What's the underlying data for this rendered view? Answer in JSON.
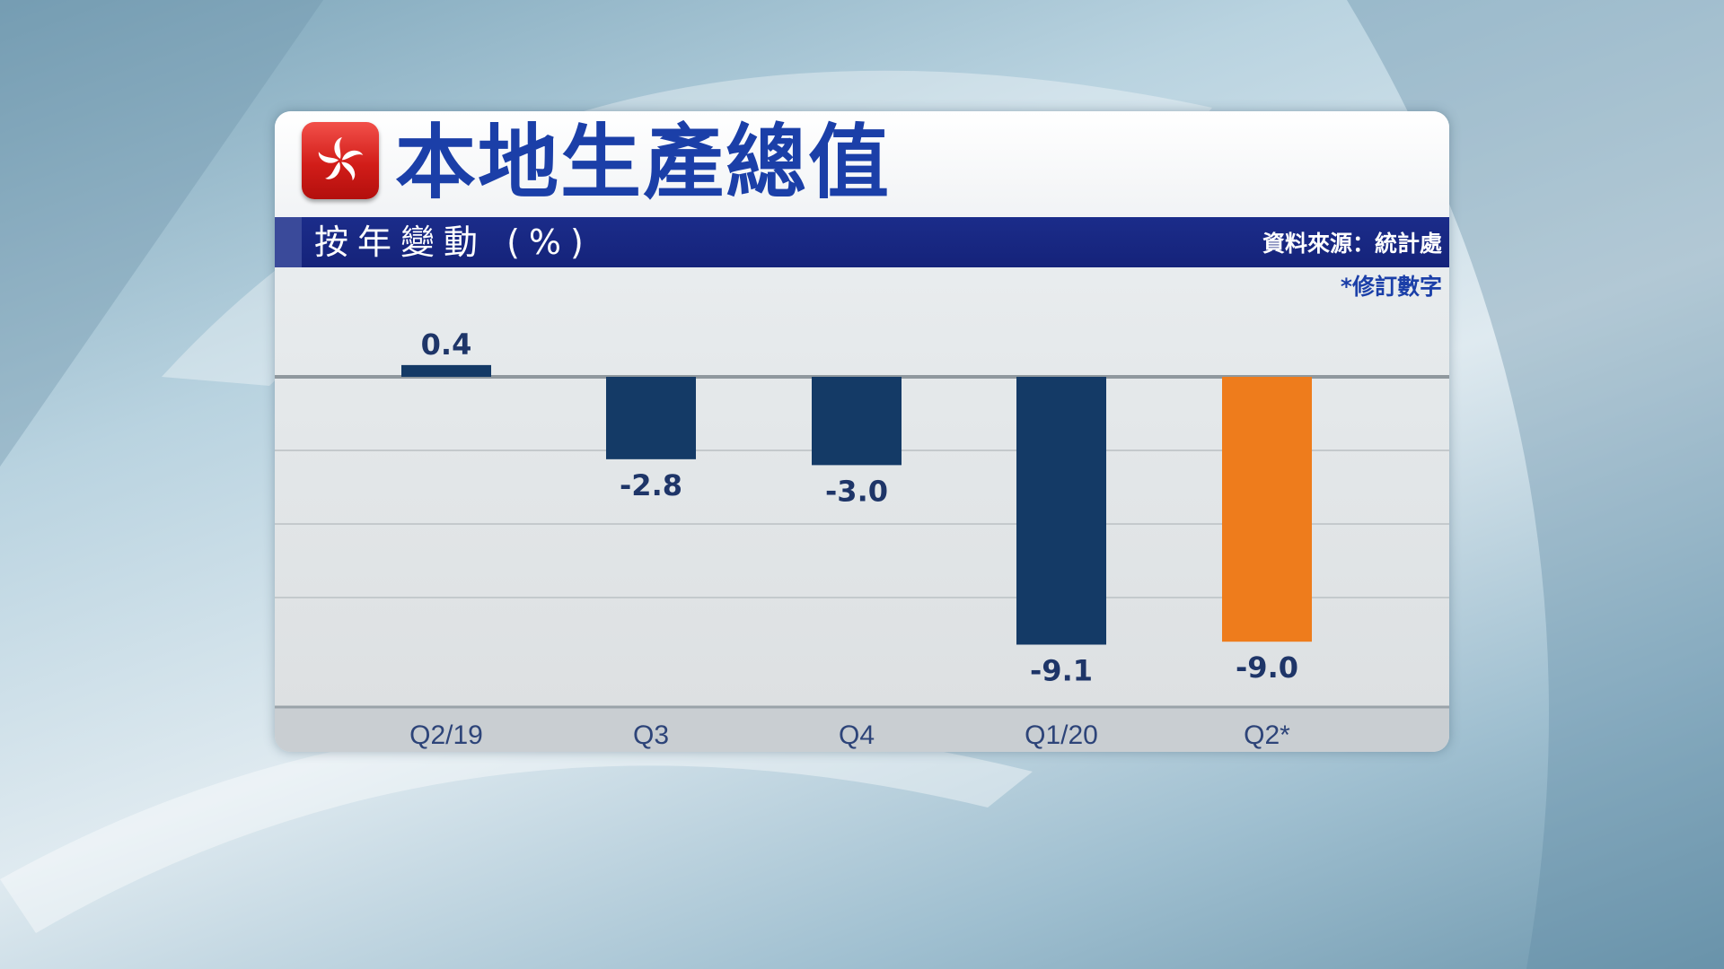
{
  "chart_data": {
    "type": "bar",
    "title": "本地生產總值",
    "subtitle": "按年變動 (%)",
    "source": "資料來源：統計處",
    "note": "*修訂數字",
    "categories": [
      "Q2/19",
      "Q3",
      "Q4",
      "Q1/20",
      "Q2*"
    ],
    "values": [
      0.4,
      -2.8,
      -3.0,
      -9.1,
      -9.0
    ],
    "value_labels": [
      "0.4",
      "-2.8",
      "-3.0",
      "-9.1",
      "-9.0"
    ],
    "ylim": [
      -10,
      1
    ],
    "grid": true,
    "legend": "none"
  },
  "colors": {
    "bar": "#143a66",
    "highlight_bar": "#ee7c1c",
    "title": "#1b3fa8",
    "band": "#1b2c8a",
    "flag_red": "#d21d19"
  },
  "icons": {
    "flag": "hong-kong-flag-icon"
  }
}
